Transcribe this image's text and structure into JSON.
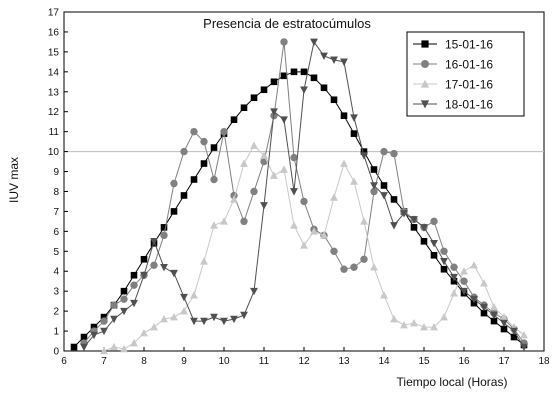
{
  "chart_data": {
    "type": "line",
    "title": "Presencia de estratocúmulos",
    "xlabel": "Tiempo local (Horas)",
    "ylabel": "IUV max",
    "xlim": [
      6,
      18
    ],
    "ylim": [
      0,
      17
    ],
    "xticks": [
      6,
      7,
      8,
      9,
      10,
      11,
      12,
      13,
      14,
      15,
      16,
      17,
      18
    ],
    "yticks": [
      0,
      1,
      2,
      3,
      4,
      5,
      6,
      7,
      8,
      9,
      10,
      11,
      12,
      13,
      14,
      15,
      16,
      17
    ],
    "reference_line_y": 10,
    "legend_position": "top-right",
    "series": [
      {
        "name": "15-01-16",
        "marker": "square",
        "color": "#000000",
        "x": [
          6.25,
          6.5,
          6.75,
          7.0,
          7.25,
          7.5,
          7.75,
          8.0,
          8.25,
          8.5,
          8.75,
          9.0,
          9.25,
          9.5,
          9.75,
          10.0,
          10.25,
          10.5,
          10.75,
          11.0,
          11.25,
          11.5,
          11.75,
          12.0,
          12.25,
          12.5,
          12.75,
          13.0,
          13.25,
          13.5,
          13.75,
          14.0,
          14.25,
          14.5,
          14.75,
          15.0,
          15.25,
          15.5,
          15.75,
          16.0,
          16.25,
          16.5,
          16.75,
          17.0,
          17.25,
          17.5
        ],
        "y": [
          0.2,
          0.7,
          1.2,
          1.7,
          2.3,
          3.0,
          3.8,
          4.6,
          5.4,
          6.2,
          7.0,
          7.8,
          8.6,
          9.4,
          10.2,
          10.9,
          11.6,
          12.2,
          12.7,
          13.1,
          13.5,
          13.8,
          14.0,
          14.0,
          13.7,
          13.2,
          12.6,
          11.8,
          10.9,
          10.0,
          9.1,
          8.3,
          7.6,
          7.0,
          6.2,
          5.5,
          4.8,
          4.1,
          3.5,
          2.9,
          2.4,
          1.9,
          1.5,
          1.1,
          0.7,
          0.3
        ]
      },
      {
        "name": "16-01-16",
        "marker": "circle",
        "color": "#808080",
        "x": [
          6.5,
          6.75,
          7.0,
          7.25,
          7.5,
          7.75,
          8.0,
          8.25,
          8.5,
          8.75,
          9.0,
          9.25,
          9.5,
          9.75,
          10.0,
          10.25,
          10.5,
          10.75,
          11.0,
          11.25,
          11.5,
          11.75,
          12.0,
          12.25,
          12.5,
          12.75,
          13.0,
          13.25,
          13.5,
          13.75,
          14.0,
          14.25,
          14.5,
          14.75,
          15.0,
          15.25,
          15.5,
          15.75,
          16.0,
          16.25,
          16.5,
          16.75,
          17.0,
          17.25,
          17.5
        ],
        "y": [
          0.4,
          1.0,
          1.5,
          2.3,
          2.6,
          3.3,
          3.8,
          4.3,
          5.8,
          8.4,
          10.0,
          11.0,
          10.5,
          8.6,
          11.0,
          7.8,
          6.5,
          8.0,
          9.5,
          11.8,
          15.5,
          9.7,
          7.5,
          6.1,
          5.8,
          5.0,
          4.1,
          4.2,
          4.6,
          8.0,
          10.0,
          9.9,
          7.0,
          6.6,
          6.2,
          6.5,
          5.0,
          4.2,
          3.5,
          2.7,
          2.3,
          1.9,
          1.6,
          1.1,
          0.4
        ]
      },
      {
        "name": "17-01-16",
        "marker": "triangle",
        "color": "#c8c8c8",
        "x": [
          7.0,
          7.25,
          7.5,
          7.75,
          8.0,
          8.25,
          8.5,
          8.75,
          9.0,
          9.25,
          9.5,
          9.75,
          10.0,
          10.25,
          10.5,
          10.75,
          11.0,
          11.25,
          11.5,
          11.75,
          12.0,
          12.25,
          12.5,
          12.75,
          13.0,
          13.25,
          13.5,
          13.75,
          14.0,
          14.25,
          14.5,
          14.75,
          15.0,
          15.25,
          15.5,
          15.75,
          16.0,
          16.25,
          16.5,
          16.75,
          17.0,
          17.25,
          17.5
        ],
        "y": [
          0.0,
          0.2,
          0.1,
          0.4,
          0.9,
          1.2,
          1.6,
          1.7,
          2.0,
          2.8,
          4.5,
          6.3,
          6.5,
          7.6,
          9.4,
          10.3,
          9.8,
          8.8,
          9.1,
          6.3,
          5.3,
          6.0,
          5.8,
          7.7,
          9.4,
          8.5,
          6.5,
          4.2,
          2.8,
          1.6,
          1.3,
          1.4,
          1.2,
          1.2,
          1.7,
          2.9,
          4.0,
          4.3,
          3.4,
          2.2,
          1.7,
          1.2,
          0.8
        ]
      },
      {
        "name": "18-01-16",
        "marker": "triangle-down",
        "color": "#505050",
        "x": [
          6.5,
          6.75,
          7.0,
          7.25,
          7.5,
          7.75,
          8.0,
          8.25,
          8.5,
          8.75,
          9.0,
          9.25,
          9.5,
          9.75,
          10.0,
          10.25,
          10.5,
          10.75,
          11.0,
          11.25,
          11.5,
          11.75,
          12.0,
          12.25,
          12.5,
          12.75,
          13.0,
          13.25,
          13.5,
          13.75,
          14.0,
          14.25,
          14.5,
          14.75,
          15.0,
          15.25,
          15.5,
          15.75,
          16.0,
          16.25,
          16.5,
          16.75,
          17.0,
          17.25,
          17.5
        ],
        "y": [
          0.2,
          0.8,
          1.0,
          1.6,
          2.0,
          2.4,
          3.8,
          5.5,
          4.2,
          3.9,
          2.7,
          1.5,
          1.5,
          1.7,
          1.5,
          1.6,
          1.8,
          3.0,
          7.3,
          12.0,
          11.6,
          8.0,
          13.1,
          15.5,
          14.8,
          14.6,
          14.5,
          11.7,
          9.8,
          8.3,
          7.8,
          6.3,
          6.9,
          6.6,
          6.2,
          5.4,
          4.5,
          3.7,
          3.0,
          2.6,
          2.2,
          1.8,
          1.4,
          1.0,
          0.2
        ]
      }
    ]
  }
}
